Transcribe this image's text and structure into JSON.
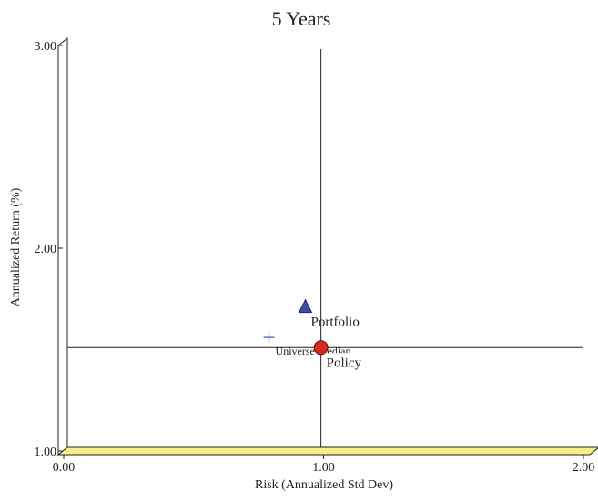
{
  "chart_data": {
    "type": "scatter",
    "title": "5 Years",
    "xlabel": "Risk (Annualized Std Dev)",
    "ylabel": "Annualized Return (%)",
    "xlim": [
      0,
      2
    ],
    "ylim": [
      1,
      3
    ],
    "x_ticks": [
      "0.00",
      "1.00",
      "2.00"
    ],
    "y_ticks": [
      "1.00",
      "2.00",
      "3.00"
    ],
    "crosshair": {
      "x": 0.99,
      "y": 1.51
    },
    "points": [
      {
        "label": "Portfolio",
        "x": 0.93,
        "y": 1.71,
        "marker": "triangle",
        "color": "#3a4fa8"
      },
      {
        "label": "Universe Median",
        "x": 0.79,
        "y": 1.56,
        "marker": "plus",
        "color": "#4a66c9"
      },
      {
        "label": "Policy",
        "x": 0.99,
        "y": 1.51,
        "marker": "circle",
        "color": "#d42a1f"
      }
    ],
    "floor_color": "#f5ee8a",
    "grid": false
  }
}
